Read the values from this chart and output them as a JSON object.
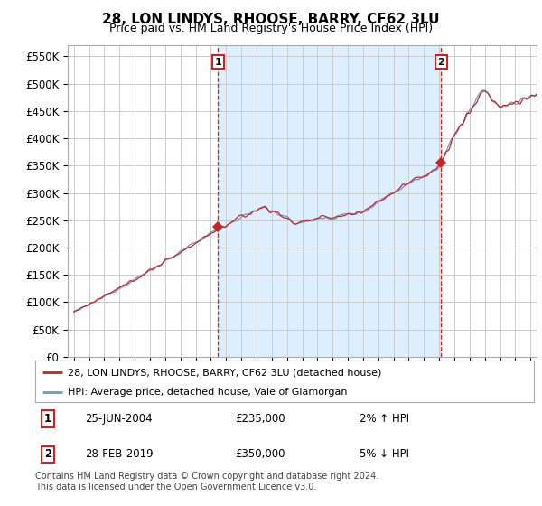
{
  "title": "28, LON LINDYS, RHOOSE, BARRY, CF62 3LU",
  "subtitle": "Price paid vs. HM Land Registry's House Price Index (HPI)",
  "ylabel_ticks": [
    "£0",
    "£50K",
    "£100K",
    "£150K",
    "£200K",
    "£250K",
    "£300K",
    "£350K",
    "£400K",
    "£450K",
    "£500K",
    "£550K"
  ],
  "ytick_values": [
    0,
    50000,
    100000,
    150000,
    200000,
    250000,
    300000,
    350000,
    400000,
    450000,
    500000,
    550000
  ],
  "hpi_color": "#6699cc",
  "price_color": "#cc2222",
  "shade_color": "#ddeeff",
  "marker1_date": 2004.47,
  "marker1_value": 235000,
  "marker2_date": 2019.12,
  "marker2_value": 350000,
  "legend_entry1": "28, LON LINDYS, RHOOSE, BARRY, CF62 3LU (detached house)",
  "legend_entry2": "HPI: Average price, detached house, Vale of Glamorgan",
  "annotation1_num": "1",
  "annotation1_date": "25-JUN-2004",
  "annotation1_price": "£235,000",
  "annotation1_hpi": "2% ↑ HPI",
  "annotation2_num": "2",
  "annotation2_date": "28-FEB-2019",
  "annotation2_price": "£350,000",
  "annotation2_hpi": "5% ↓ HPI",
  "footer": "Contains HM Land Registry data © Crown copyright and database right 2024.\nThis data is licensed under the Open Government Licence v3.0.",
  "bg_color": "#ffffff",
  "grid_color": "#cccccc",
  "xlim_start": 1994.6,
  "xlim_end": 2025.4,
  "ylim_max": 570000,
  "title_fontsize": 11,
  "subtitle_fontsize": 9
}
